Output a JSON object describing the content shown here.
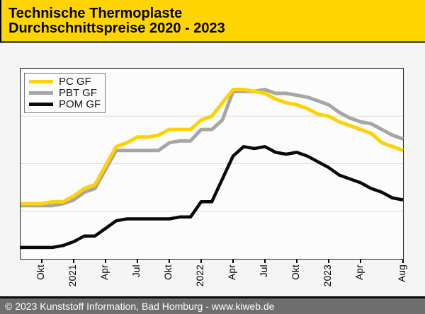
{
  "header": {
    "title_line1": "Technische Thermoplaste",
    "title_line2": "Durchschnittspreise 2020 - 2023"
  },
  "legend": {
    "items": [
      {
        "label": "PC GF",
        "color": "#ffd200"
      },
      {
        "label": "PBT GF",
        "color": "#a6a6a6"
      },
      {
        "label": "POM GF",
        "color": "#0a0a0a"
      }
    ]
  },
  "footer": {
    "text": "© 2023 Kunststoff Information, Bad Homburg - www.kiweb.de"
  },
  "colors": {
    "header_bg": "#ffd400",
    "header_underline": "#575757",
    "footer_bg": "#6e6e6e",
    "footer_topline": "#0a0a0a",
    "plot_bg": "#fcfcfc",
    "plot_border": "#1c1c1c",
    "gridline": "#dcdcdc",
    "page_bg": "#f5f5f5"
  },
  "chart_data": {
    "type": "line",
    "title": "Technische Thermoplaste Durchschnittspreise 2020 - 2023",
    "xlabel": "",
    "ylabel": "",
    "y_axis_note": "no y-axis tick labels shown; values are a price index 0-100 estimated from plot height and gridlines",
    "ylim": [
      0,
      100
    ],
    "grid": "3 horizontal gridlines at 25 / 50 / 75",
    "legend_position": "top-left inside plot",
    "x_months": [
      "2020-08",
      "2020-09",
      "2020-10",
      "2020-11",
      "2020-12",
      "2021-01",
      "2021-02",
      "2021-03",
      "2021-04",
      "2021-05",
      "2021-06",
      "2021-07",
      "2021-08",
      "2021-09",
      "2021-10",
      "2021-11",
      "2021-12",
      "2022-01",
      "2022-02",
      "2022-03",
      "2022-04",
      "2022-05",
      "2022-06",
      "2022-07",
      "2022-08",
      "2022-09",
      "2022-10",
      "2022-11",
      "2022-12",
      "2023-01",
      "2023-02",
      "2023-03",
      "2023-04",
      "2023-05",
      "2023-06",
      "2023-07",
      "2023-08"
    ],
    "x_ticks": [
      {
        "label": "Okt",
        "month_index": 2
      },
      {
        "label": "2021",
        "month_index": 5
      },
      {
        "label": "Apr",
        "month_index": 8
      },
      {
        "label": "Jul",
        "month_index": 11
      },
      {
        "label": "Okt",
        "month_index": 14
      },
      {
        "label": "2022",
        "month_index": 17
      },
      {
        "label": "Apr",
        "month_index": 20
      },
      {
        "label": "Jul",
        "month_index": 23
      },
      {
        "label": "Okt",
        "month_index": 26
      },
      {
        "label": "2023",
        "month_index": 29
      },
      {
        "label": "Apr",
        "month_index": 32
      },
      {
        "label": "Aug",
        "month_index": 36
      }
    ],
    "series": [
      {
        "name": "PC GF",
        "color": "#ffd200",
        "values": [
          29,
          29,
          29,
          30,
          30,
          33,
          37,
          39,
          49,
          59,
          61,
          64,
          64,
          65,
          68,
          68,
          68,
          73,
          75,
          82,
          89,
          89,
          88,
          87,
          84,
          82,
          81,
          79,
          76,
          75,
          72,
          70,
          68,
          66,
          61,
          59,
          57
        ]
      },
      {
        "name": "PBT GF",
        "color": "#a6a6a6",
        "values": [
          28,
          28,
          28,
          28,
          29,
          31,
          35,
          37,
          47,
          57,
          57,
          57,
          57,
          57,
          61,
          62,
          62,
          68,
          68,
          73,
          88,
          88,
          88,
          89,
          87,
          87,
          86,
          85,
          83,
          81,
          77,
          74,
          72,
          71,
          68,
          65,
          63
        ]
      },
      {
        "name": "POM GF",
        "color": "#0a0a0a",
        "values": [
          6,
          6,
          6,
          6,
          7,
          9,
          12,
          12,
          16,
          20,
          21,
          21,
          21,
          21,
          21,
          22,
          22,
          30,
          30,
          42,
          54,
          59,
          58,
          59,
          56,
          55,
          56,
          54,
          51,
          48,
          44,
          42,
          40,
          37,
          35,
          32,
          31
        ]
      }
    ]
  }
}
